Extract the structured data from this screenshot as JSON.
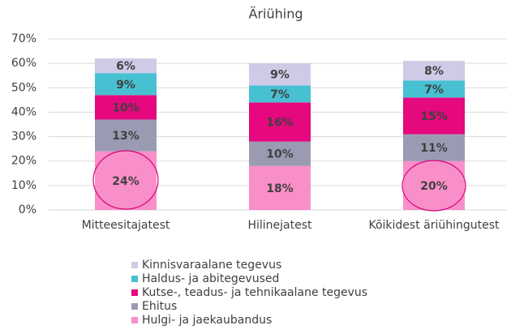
{
  "chart_data": {
    "type": "stacked_bar",
    "title": "Äriühing",
    "categories": [
      "Mitteesitajatest",
      "Hilinejatest",
      "Kõikidest äriühingutest"
    ],
    "series": [
      {
        "name": "Hulgi- ja jaekaubandus",
        "color": "#f98fc8",
        "values": [
          24,
          18,
          20
        ],
        "value_labels": [
          "24%",
          "18%",
          "20%"
        ]
      },
      {
        "name": "Ehitus",
        "color": "#9a9bb3",
        "values": [
          13,
          10,
          11
        ],
        "value_labels": [
          "13%",
          "10%",
          "11%"
        ]
      },
      {
        "name": "Kutse-, teadus- ja tehnikaalane tegevus",
        "color": "#e5087e",
        "values": [
          10,
          16,
          15
        ],
        "value_labels": [
          "10%",
          "16%",
          "15%"
        ]
      },
      {
        "name": "Haldus- ja abitegevused",
        "color": "#47c0d2",
        "values": [
          9,
          7,
          7
        ],
        "value_labels": [
          "9%",
          "7%",
          "7%"
        ]
      },
      {
        "name": "Kinnisvaraalane tegevus",
        "color": "#cfcae6",
        "values": [
          6,
          9,
          8
        ],
        "value_labels": [
          "6%",
          "9%",
          "8%"
        ]
      }
    ],
    "ylim": [
      0,
      70
    ],
    "yticks": [
      {
        "value": 0,
        "label": "0%"
      },
      {
        "value": 10,
        "label": "10%"
      },
      {
        "value": 20,
        "label": "20%"
      },
      {
        "value": 30,
        "label": "30%"
      },
      {
        "value": 40,
        "label": "40%"
      },
      {
        "value": 50,
        "label": "50%"
      },
      {
        "value": 60,
        "label": "60%"
      },
      {
        "value": 70,
        "label": "70%"
      }
    ],
    "grid": true,
    "legend": "bottom"
  }
}
